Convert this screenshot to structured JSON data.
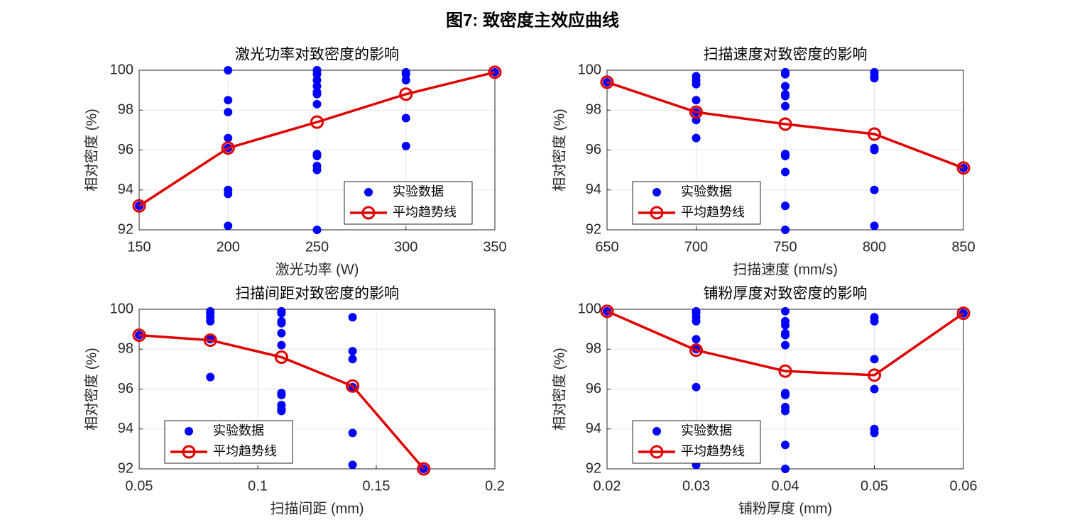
{
  "title": "图7: 致密度主效应曲线",
  "chart_data": [
    {
      "type": "scatter",
      "title": "激光功率对致密度的影响",
      "xlabel": "激光功率 (W)",
      "ylabel": "相对密度 (%)",
      "xlim": [
        150,
        350
      ],
      "xticks": [
        150,
        200,
        250,
        300,
        350
      ],
      "ylim": [
        92,
        100
      ],
      "yticks": [
        92,
        94,
        96,
        98,
        100
      ],
      "grid": true,
      "legend": "lower right",
      "series": [
        {
          "name": "实验数据",
          "color": "#0000ff",
          "mode": "markers",
          "x": [
            150,
            200,
            200,
            200,
            200,
            200,
            200,
            200,
            200,
            250,
            250,
            250,
            250,
            250,
            250,
            250,
            250,
            250,
            250,
            250,
            250,
            300,
            300,
            300,
            300,
            300,
            350
          ],
          "values": [
            93.2,
            100,
            98.5,
            97.9,
            96.6,
            96.1,
            94.0,
            93.8,
            92.2,
            100,
            99.8,
            99.5,
            99.2,
            98.9,
            98.8,
            98.3,
            95.8,
            95.7,
            95.2,
            95.0,
            92.0,
            99.9,
            99.8,
            99.5,
            97.6,
            96.2,
            99.9
          ]
        },
        {
          "name": "平均趋势线",
          "color": "#e00000",
          "mode": "lines+markers",
          "x": [
            150,
            200,
            250,
            300,
            350
          ],
          "values": [
            93.2,
            96.1,
            97.4,
            98.8,
            99.9
          ]
        }
      ]
    },
    {
      "type": "scatter",
      "title": "扫描速度对致密度的影响",
      "xlabel": "扫描速度 (mm/s)",
      "ylabel": "相对密度 (%)",
      "xlim": [
        650,
        850
      ],
      "xticks": [
        650,
        700,
        750,
        800,
        850
      ],
      "ylim": [
        92,
        100
      ],
      "yticks": [
        92,
        94,
        96,
        98,
        100
      ],
      "grid": true,
      "legend": "lower left",
      "series": [
        {
          "name": "实验数据",
          "color": "#0000ff",
          "mode": "markers",
          "x": [
            650,
            700,
            700,
            700,
            700,
            700,
            700,
            700,
            750,
            750,
            750,
            750,
            750,
            750,
            750,
            750,
            750,
            750,
            750,
            800,
            800,
            800,
            800,
            800,
            800,
            800,
            850
          ],
          "values": [
            99.4,
            99.7,
            99.5,
            99.3,
            98.5,
            97.9,
            97.5,
            96.6,
            99.9,
            99.8,
            99.2,
            98.8,
            98.7,
            98.2,
            95.8,
            95.7,
            94.9,
            93.2,
            92.0,
            99.9,
            99.7,
            99.6,
            96.1,
            96.0,
            94.0,
            92.2,
            95.1
          ]
        },
        {
          "name": "平均趋势线",
          "color": "#e00000",
          "mode": "lines+markers",
          "x": [
            650,
            700,
            750,
            800,
            850
          ],
          "values": [
            99.4,
            97.9,
            97.3,
            96.8,
            95.1
          ]
        }
      ]
    },
    {
      "type": "scatter",
      "title": "扫描间距对致密度的影响",
      "xlabel": "扫描间距 (mm)",
      "ylabel": "相对密度 (%)",
      "xlim": [
        0.05,
        0.2
      ],
      "xticks": [
        0.05,
        0.1,
        0.15,
        0.2
      ],
      "ylim": [
        92,
        100
      ],
      "yticks": [
        92,
        94,
        96,
        98,
        100
      ],
      "grid": true,
      "legend": "lower left",
      "series": [
        {
          "name": "实验数据",
          "color": "#0000ff",
          "mode": "markers",
          "x": [
            0.05,
            0.08,
            0.08,
            0.08,
            0.08,
            0.08,
            0.08,
            0.11,
            0.11,
            0.11,
            0.11,
            0.11,
            0.11,
            0.11,
            0.11,
            0.11,
            0.11,
            0.11,
            0.14,
            0.14,
            0.14,
            0.14,
            0.14,
            0.14,
            0.17
          ],
          "values": [
            98.7,
            99.9,
            99.8,
            99.6,
            99.4,
            98.5,
            96.6,
            99.9,
            99.8,
            99.4,
            99.3,
            98.8,
            98.2,
            95.8,
            95.7,
            95.2,
            95.0,
            94.9,
            99.6,
            97.9,
            97.5,
            96.1,
            93.8,
            92.2,
            92.0
          ]
        },
        {
          "name": "平均趋势线",
          "color": "#e00000",
          "mode": "lines+markers",
          "x": [
            0.05,
            0.08,
            0.11,
            0.14,
            0.17
          ],
          "values": [
            98.7,
            98.45,
            97.6,
            96.15,
            92.0
          ]
        }
      ]
    },
    {
      "type": "scatter",
      "title": "铺粉厚度对致密度的影响",
      "xlabel": "铺粉厚度 (mm)",
      "ylabel": "相对密度 (%)",
      "xlim": [
        0.02,
        0.06
      ],
      "xticks": [
        0.02,
        0.03,
        0.04,
        0.05,
        0.06
      ],
      "ylim": [
        92,
        100
      ],
      "yticks": [
        92,
        94,
        96,
        98,
        100
      ],
      "grid": true,
      "legend": "lower left",
      "series": [
        {
          "name": "实验数据",
          "color": "#0000ff",
          "mode": "markers",
          "x": [
            0.02,
            0.03,
            0.03,
            0.03,
            0.03,
            0.03,
            0.03,
            0.03,
            0.03,
            0.04,
            0.04,
            0.04,
            0.04,
            0.04,
            0.04,
            0.04,
            0.04,
            0.04,
            0.04,
            0.04,
            0.04,
            0.05,
            0.05,
            0.05,
            0.05,
            0.05,
            0.05,
            0.06
          ],
          "values": [
            99.9,
            99.9,
            99.8,
            99.6,
            99.4,
            98.5,
            98.0,
            96.1,
            92.2,
            99.9,
            99.4,
            99.2,
            98.8,
            98.7,
            98.2,
            95.8,
            95.7,
            95.1,
            94.9,
            93.2,
            92.0,
            99.6,
            99.4,
            97.5,
            96.0,
            94.0,
            93.8,
            99.8
          ]
        },
        {
          "name": "平均趋势线",
          "color": "#e00000",
          "mode": "lines+markers",
          "x": [
            0.02,
            0.03,
            0.04,
            0.05,
            0.06
          ],
          "values": [
            99.9,
            97.95,
            96.9,
            96.7,
            99.8
          ]
        }
      ]
    }
  ]
}
